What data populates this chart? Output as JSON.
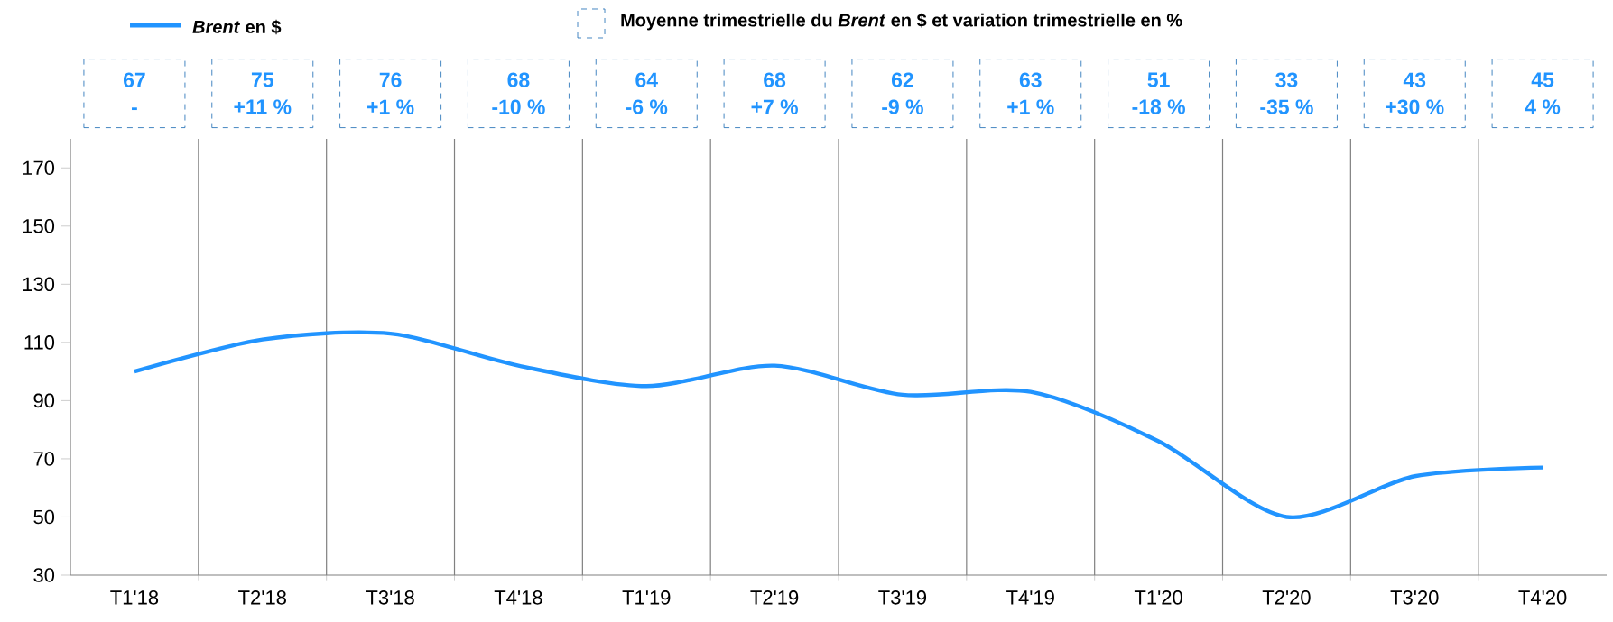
{
  "chart_data": {
    "type": "line",
    "categories": [
      "T1'18",
      "T2'18",
      "T3'18",
      "T4'18",
      "T1'19",
      "T2'19",
      "T3'19",
      "T4'19",
      "T1'20",
      "T2'20",
      "T3'20",
      "T4'20"
    ],
    "series": [
      {
        "name": "*Brent* en $",
        "color": "#2194ff",
        "values": [
          100,
          111,
          113,
          102,
          95,
          102,
          92,
          93,
          76,
          50,
          64,
          67
        ]
      }
    ],
    "ylim": [
      30,
      180
    ],
    "yticks": [
      30,
      50,
      70,
      90,
      110,
      130,
      150,
      170
    ],
    "grid": "x",
    "legend": "top",
    "marker": "none",
    "line_style": "solid",
    "annotations": [
      "Moyenne trimestrielle du *Brent* en $ et variation trimestrielle en %",
      "67",
      "75",
      "76",
      "68",
      "64",
      "68",
      "62",
      "63",
      "51",
      "33",
      "43",
      "45",
      "-",
      "+11 %",
      "+1 %",
      "-10 %",
      "-6 %",
      "+7 %",
      "-9 %",
      "+1 %",
      "-18 %",
      "-35 %",
      "+30 %",
      "4 %"
    ]
  }
}
